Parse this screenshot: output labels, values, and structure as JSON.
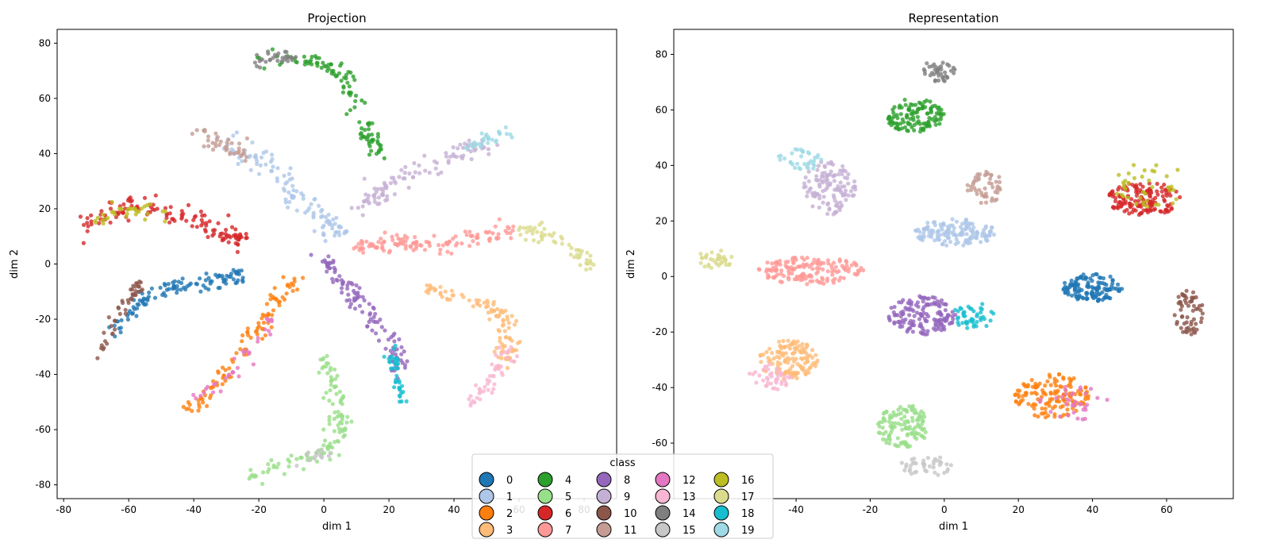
{
  "chart_data": [
    {
      "type": "scatter",
      "title": "Projection",
      "xlabel": "dim 1",
      "ylabel": "dim 2",
      "xlim": [
        -82,
        90
      ],
      "ylim": [
        -85,
        85
      ],
      "xticks": [
        -80,
        -60,
        -40,
        -20,
        0,
        20,
        40,
        60,
        80
      ],
      "yticks": [
        -80,
        -60,
        -40,
        -20,
        0,
        20,
        40,
        60,
        80
      ],
      "grid": false,
      "clusters": [
        {
          "class": "0",
          "path": [
            [
              -66,
              -24
            ],
            [
              -60,
              -18
            ],
            [
              -54,
              -11
            ],
            [
              -46,
              -8
            ],
            [
              -37,
              -7
            ],
            [
              -28,
              -5
            ],
            [
              -26,
              -4
            ]
          ],
          "spread": 1.6,
          "n": 110
        },
        {
          "class": "10",
          "path": [
            [
              -68,
              -31
            ],
            [
              -66,
              -23
            ],
            [
              -62,
              -16
            ],
            [
              -58,
              -10
            ],
            [
              -56,
              -8
            ]
          ],
          "spread": 1.3,
          "n": 45
        },
        {
          "class": "1",
          "path": [
            [
              -30,
              44
            ],
            [
              -20,
              38
            ],
            [
              -12,
              30
            ],
            [
              -6,
              22
            ],
            [
              0,
              15
            ],
            [
              6,
              11
            ]
          ],
          "spread": 2.0,
          "n": 110
        },
        {
          "class": "11",
          "path": [
            [
              -39,
              49
            ],
            [
              -34,
              45
            ],
            [
              -28,
              42
            ],
            [
              -24,
              40
            ]
          ],
          "spread": 1.6,
          "n": 40
        },
        {
          "class": "2",
          "path": [
            [
              -43,
              -53
            ],
            [
              -36,
              -48
            ],
            [
              -30,
              -40
            ],
            [
              -24,
              -30
            ],
            [
              -18,
              -20
            ],
            [
              -14,
              -12
            ],
            [
              -9,
              -5
            ]
          ],
          "spread": 1.5,
          "n": 100
        },
        {
          "class": "12",
          "path": [
            [
              -38,
              -49
            ],
            [
              -32,
              -44
            ],
            [
              -26,
              -36
            ],
            [
              -20,
              -27
            ],
            [
              -16,
              -20
            ]
          ],
          "spread": 1.3,
          "n": 35
        },
        {
          "class": "3",
          "path": [
            [
              31,
              -9
            ],
            [
              40,
              -11
            ],
            [
              50,
              -14
            ],
            [
              55,
              -20
            ],
            [
              57,
              -28
            ],
            [
              55,
              -36
            ]
          ],
          "spread": 1.6,
          "n": 100
        },
        {
          "class": "13",
          "path": [
            [
              43,
              -51
            ],
            [
              48,
              -47
            ],
            [
              52,
              -42
            ],
            [
              55,
              -35
            ],
            [
              57,
              -30
            ]
          ],
          "spread": 1.4,
          "n": 45
        },
        {
          "class": "4",
          "path": [
            [
              -20,
              74
            ],
            [
              -10,
              74
            ],
            [
              -2,
              73
            ],
            [
              4,
              70
            ],
            [
              8,
              65
            ],
            [
              10,
              58
            ],
            [
              12,
              50
            ],
            [
              14,
              45
            ],
            [
              16,
              40
            ]
          ],
          "spread": 1.6,
          "n": 110
        },
        {
          "class": "14",
          "path": [
            [
              -22,
              73
            ],
            [
              -16,
              75
            ],
            [
              -10,
              75
            ]
          ],
          "spread": 1.2,
          "n": 30
        },
        {
          "class": "5",
          "path": [
            [
              0,
              -33
            ],
            [
              2,
              -42
            ],
            [
              4,
              -52
            ],
            [
              5,
              -60
            ],
            [
              2,
              -67
            ],
            [
              -5,
              -70
            ],
            [
              -14,
              -73
            ],
            [
              -22,
              -77
            ]
          ],
          "spread": 1.7,
          "n": 120
        },
        {
          "class": "15",
          "path": [
            [
              -5,
              -71
            ],
            [
              -1,
              -69
            ],
            [
              3,
              -66
            ]
          ],
          "spread": 1.3,
          "n": 15
        },
        {
          "class": "6",
          "path": [
            [
              -73,
              14
            ],
            [
              -66,
              18
            ],
            [
              -59,
              21
            ],
            [
              -50,
              19
            ],
            [
              -40,
              16
            ],
            [
              -32,
              12
            ],
            [
              -24,
              8
            ]
          ],
          "spread": 1.8,
          "n": 130
        },
        {
          "class": "16",
          "path": [
            [
              -70,
              15
            ],
            [
              -64,
              19
            ],
            [
              -57,
              20
            ],
            [
              -50,
              18
            ]
          ],
          "spread": 1.4,
          "n": 35
        },
        {
          "class": "7",
          "path": [
            [
              10,
              6
            ],
            [
              20,
              7
            ],
            [
              30,
              7
            ],
            [
              40,
              8
            ],
            [
              50,
              10
            ],
            [
              58,
              12
            ]
          ],
          "spread": 1.7,
          "n": 120
        },
        {
          "class": "17",
          "path": [
            [
              58,
              13
            ],
            [
              64,
              12
            ],
            [
              72,
              8
            ],
            [
              78,
              4
            ],
            [
              82,
              -2
            ]
          ],
          "spread": 1.5,
          "n": 55
        },
        {
          "class": "8",
          "path": [
            [
              0,
              1
            ],
            [
              4,
              -4
            ],
            [
              8,
              -10
            ],
            [
              12,
              -15
            ],
            [
              16,
              -21
            ],
            [
              20,
              -27
            ],
            [
              22,
              -32
            ],
            [
              23,
              -38
            ]
          ],
          "spread": 1.6,
          "n": 110
        },
        {
          "class": "18",
          "path": [
            [
              20,
              -30
            ],
            [
              22,
              -38
            ],
            [
              23,
              -45
            ],
            [
              23,
              -52
            ]
          ],
          "spread": 1.0,
          "n": 40
        },
        {
          "class": "9",
          "path": [
            [
              12,
              20
            ],
            [
              16,
              25
            ],
            [
              22,
              30
            ],
            [
              30,
              35
            ],
            [
              38,
              39
            ],
            [
              45,
              42
            ],
            [
              52,
              44
            ]
          ],
          "spread": 1.8,
          "n": 100
        },
        {
          "class": "19",
          "path": [
            [
              42,
              42
            ],
            [
              48,
              44
            ],
            [
              54,
              47
            ],
            [
              58,
              48
            ]
          ],
          "spread": 1.2,
          "n": 30
        }
      ]
    },
    {
      "type": "scatter",
      "title": "Representation",
      "xlabel": "dim 1",
      "ylabel": "dim 2",
      "xlim": [
        -73,
        78
      ],
      "ylim": [
        -80,
        89
      ],
      "xticks": [
        -40,
        -20,
        0,
        20,
        40,
        60
      ],
      "yticks": [
        -80,
        -60,
        -40,
        -20,
        0,
        20,
        40,
        60,
        80
      ],
      "grid": false,
      "clusters": [
        {
          "class": "0",
          "blob": [
            40,
            -4
          ],
          "rx": 8,
          "ry": 5,
          "n": 130
        },
        {
          "class": "10",
          "blob": [
            66,
            -13
          ],
          "rx": 4,
          "ry": 8,
          "n": 60
        },
        {
          "class": "1",
          "blob": [
            3,
            16
          ],
          "rx": 11,
          "ry": 5,
          "n": 140
        },
        {
          "class": "11",
          "blob": [
            11,
            32
          ],
          "rx": 5,
          "ry": 6,
          "n": 50
        },
        {
          "class": "2",
          "blob": [
            29,
            -43
          ],
          "rx": 10,
          "ry": 8,
          "n": 140
        },
        {
          "class": "12",
          "blob": [
            35,
            -45
          ],
          "rx": 10,
          "ry": 7,
          "n": 35
        },
        {
          "class": "3",
          "blob": [
            -42,
            -30
          ],
          "rx": 8,
          "ry": 7,
          "n": 130
        },
        {
          "class": "13",
          "blob": [
            -47,
            -36
          ],
          "rx": 6,
          "ry": 5,
          "n": 40
        },
        {
          "class": "4",
          "blob": [
            -8,
            58
          ],
          "rx": 8,
          "ry": 6,
          "n": 120
        },
        {
          "class": "14",
          "blob": [
            -2,
            74
          ],
          "rx": 5,
          "ry": 4,
          "n": 40
        },
        {
          "class": "5",
          "blob": [
            -11,
            -54
          ],
          "rx": 7,
          "ry": 8,
          "n": 120
        },
        {
          "class": "15",
          "blob": [
            -5,
            -68
          ],
          "rx": 7,
          "ry": 4,
          "n": 40
        },
        {
          "class": "6",
          "blob": [
            54,
            28
          ],
          "rx": 10,
          "ry": 6,
          "n": 150
        },
        {
          "class": "16",
          "blob": [
            56,
            33
          ],
          "rx": 11,
          "ry": 8,
          "n": 40
        },
        {
          "class": "7",
          "blob": [
            -36,
            2
          ],
          "rx": 15,
          "ry": 5,
          "n": 150
        },
        {
          "class": "17",
          "blob": [
            -62,
            6
          ],
          "rx": 5,
          "ry": 4,
          "n": 35
        },
        {
          "class": "8",
          "blob": [
            -6,
            -14
          ],
          "rx": 9,
          "ry": 7,
          "n": 150
        },
        {
          "class": "18",
          "blob": [
            8,
            -14
          ],
          "rx": 6,
          "ry": 5,
          "n": 45
        },
        {
          "class": "9",
          "blob": [
            -31,
            32
          ],
          "rx": 7,
          "ry": 10,
          "n": 120
        },
        {
          "class": "19",
          "blob": [
            -39,
            42
          ],
          "rx": 6,
          "ry": 4,
          "n": 35
        }
      ]
    }
  ],
  "legend": {
    "title": "class",
    "placement": "lower-center",
    "entries": [
      {
        "label": "0",
        "color": "#1f77b4"
      },
      {
        "label": "1",
        "color": "#aec7e8"
      },
      {
        "label": "2",
        "color": "#ff7f0e"
      },
      {
        "label": "3",
        "color": "#ffbb78"
      },
      {
        "label": "4",
        "color": "#2ca02c"
      },
      {
        "label": "5",
        "color": "#98df8a"
      },
      {
        "label": "6",
        "color": "#d62728"
      },
      {
        "label": "7",
        "color": "#ff9896"
      },
      {
        "label": "8",
        "color": "#9467bd"
      },
      {
        "label": "9",
        "color": "#c5b0d5"
      },
      {
        "label": "10",
        "color": "#8c564b"
      },
      {
        "label": "11",
        "color": "#c49c94"
      },
      {
        "label": "12",
        "color": "#e377c2"
      },
      {
        "label": "13",
        "color": "#f7b6d2"
      },
      {
        "label": "14",
        "color": "#7f7f7f"
      },
      {
        "label": "15",
        "color": "#c7c7c7"
      },
      {
        "label": "16",
        "color": "#bcbd22"
      },
      {
        "label": "17",
        "color": "#dbdb8d"
      },
      {
        "label": "18",
        "color": "#17becf"
      },
      {
        "label": "19",
        "color": "#9edae5"
      }
    ]
  }
}
